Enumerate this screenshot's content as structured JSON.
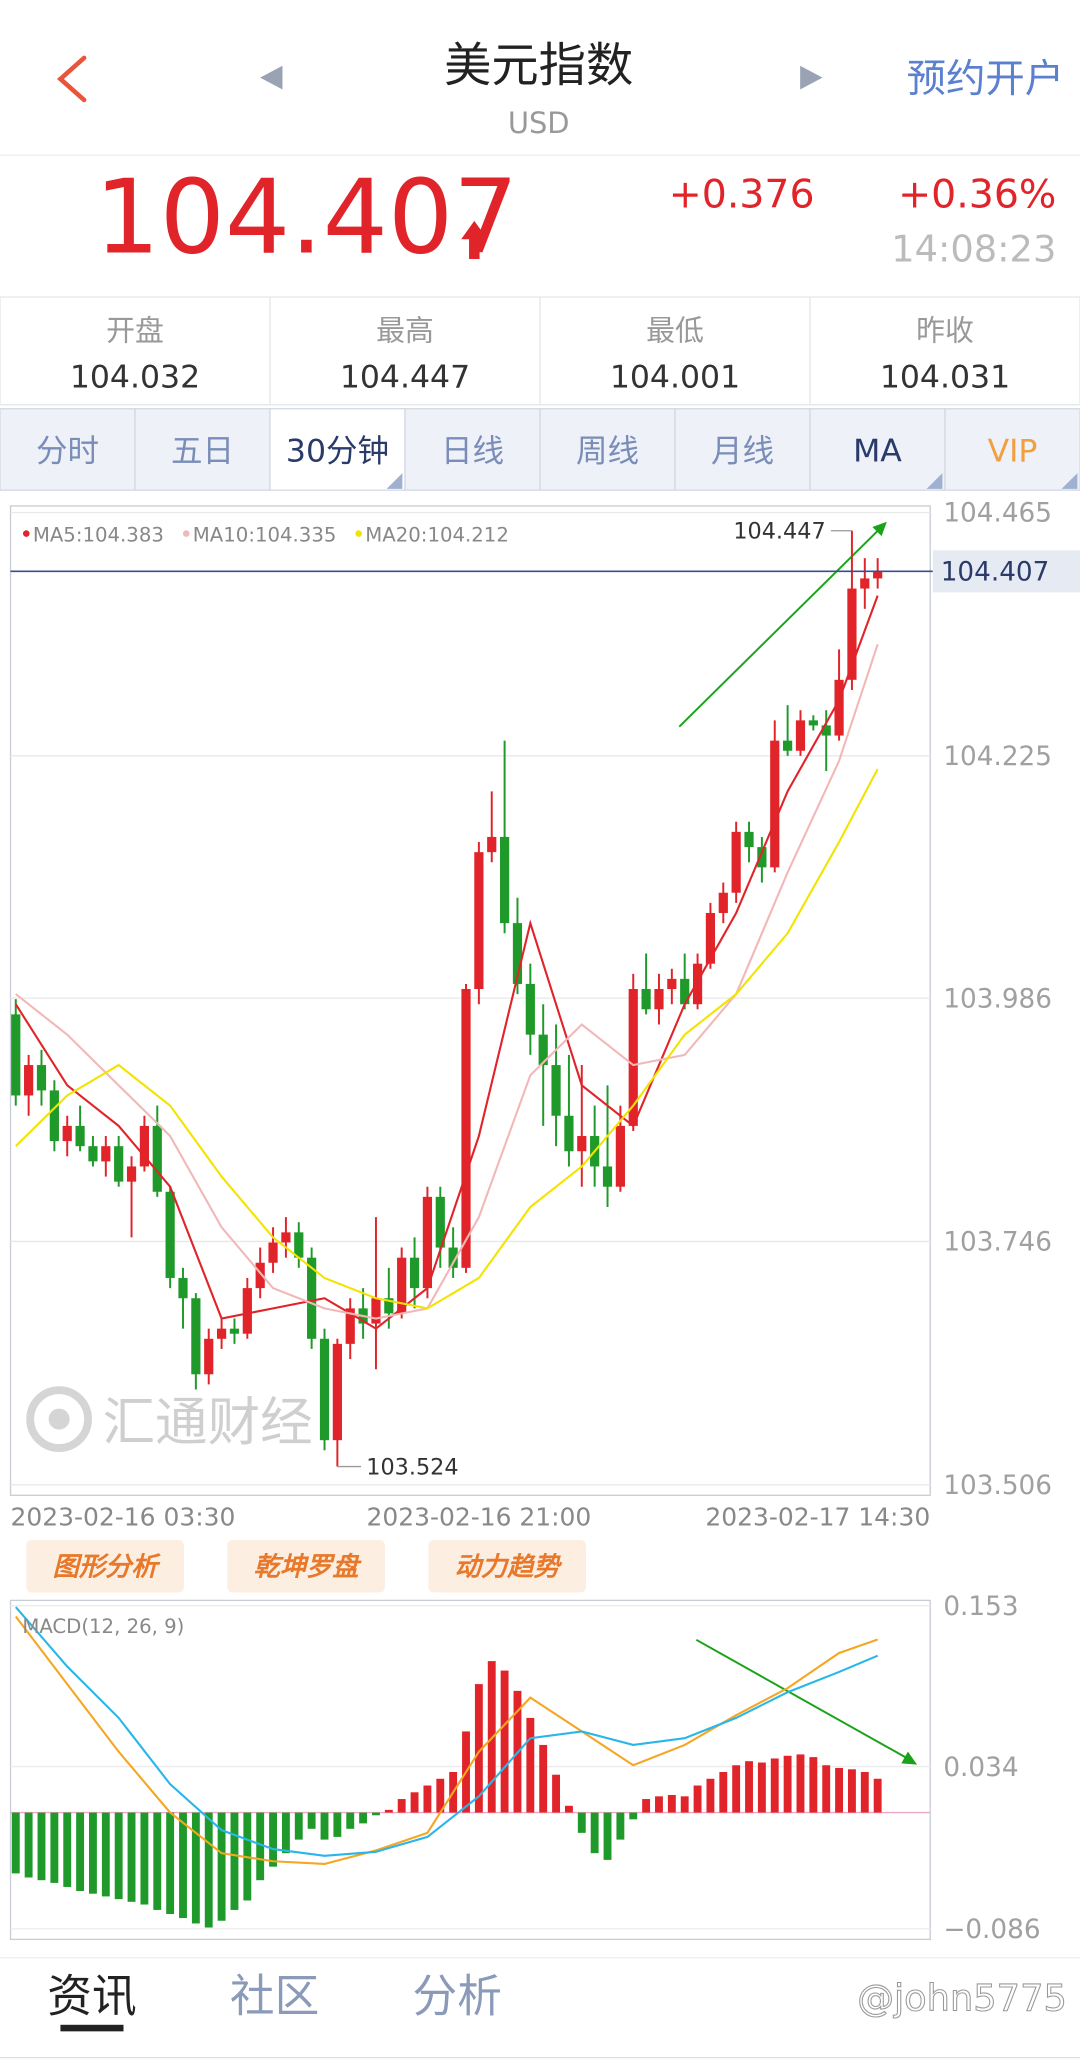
{
  "header": {
    "title": "美元指数",
    "subtitle": "USD",
    "action": "预约开户"
  },
  "quote": {
    "price": 104.407,
    "change": "+0.376",
    "change_pct": "+0.36%",
    "time": "14:08:23"
  },
  "stats": [
    {
      "label": "开盘",
      "value": 104.032
    },
    {
      "label": "最高",
      "value": 104.447
    },
    {
      "label": "最低",
      "value": 104.001
    },
    {
      "label": "昨收",
      "value": 104.031
    }
  ],
  "tabs": {
    "items": [
      "分时",
      "五日",
      "30分钟",
      "日线",
      "周线",
      "月线",
      "MA",
      "VIP"
    ],
    "selected": 2
  },
  "chart_data": [
    {
      "type": "candlestick",
      "up_color": "#e0242a",
      "down_color": "#1f9a2a",
      "ylim": [
        103.506,
        104.465
      ],
      "yticks": [
        104.465,
        104.225,
        103.986,
        103.746,
        103.506
      ],
      "grid": true,
      "categories": [
        "2023-02-16 03:30",
        null,
        null,
        null,
        null,
        null,
        null,
        null,
        null,
        null,
        null,
        null,
        null,
        null,
        null,
        null,
        null,
        null,
        null,
        null,
        null,
        null,
        null,
        null,
        null,
        null,
        null,
        null,
        null,
        null,
        null,
        null,
        null,
        null,
        null,
        null,
        "2023-02-16 21:00",
        null,
        null,
        null,
        null,
        null,
        null,
        null,
        null,
        null,
        null,
        null,
        null,
        null,
        null,
        null,
        null,
        null,
        null,
        null,
        null,
        null,
        null,
        null,
        null,
        null,
        null,
        null,
        null,
        null,
        null,
        "2023-02-17 14:30"
      ],
      "ohlc": [
        [
          103.97,
          103.985,
          103.88,
          103.89
        ],
        [
          103.89,
          103.93,
          103.87,
          103.92
        ],
        [
          103.92,
          103.935,
          103.88,
          103.895
        ],
        [
          103.895,
          103.905,
          103.835,
          103.845
        ],
        [
          103.845,
          103.87,
          103.83,
          103.86
        ],
        [
          103.86,
          103.88,
          103.835,
          103.84
        ],
        [
          103.84,
          103.85,
          103.82,
          103.825
        ],
        [
          103.825,
          103.85,
          103.81,
          103.84
        ],
        [
          103.84,
          103.85,
          103.8,
          103.805
        ],
        [
          103.805,
          103.83,
          103.75,
          103.82
        ],
        [
          103.82,
          103.87,
          103.815,
          103.86
        ],
        [
          103.86,
          103.88,
          103.79,
          103.795
        ],
        [
          103.795,
          103.8,
          103.7,
          103.71
        ],
        [
          103.71,
          103.72,
          103.66,
          103.69
        ],
        [
          103.69,
          103.695,
          103.6,
          103.615
        ],
        [
          103.615,
          103.66,
          103.605,
          103.65
        ],
        [
          103.65,
          103.67,
          103.64,
          103.66
        ],
        [
          103.66,
          103.67,
          103.645,
          103.655
        ],
        [
          103.655,
          103.71,
          103.65,
          103.7
        ],
        [
          103.7,
          103.74,
          103.69,
          103.725
        ],
        [
          103.725,
          103.76,
          103.715,
          103.745
        ],
        [
          103.745,
          103.77,
          103.73,
          103.755
        ],
        [
          103.755,
          103.765,
          103.72,
          103.73
        ],
        [
          103.73,
          103.74,
          103.64,
          103.65
        ],
        [
          103.65,
          103.66,
          103.54,
          103.55
        ],
        [
          103.55,
          103.65,
          103.524,
          103.645
        ],
        [
          103.645,
          103.69,
          103.63,
          103.68
        ],
        [
          103.68,
          103.7,
          103.65,
          103.665
        ],
        [
          103.665,
          103.77,
          103.62,
          103.69
        ],
        [
          103.69,
          103.72,
          103.66,
          103.675
        ],
        [
          103.675,
          103.74,
          103.67,
          103.73
        ],
        [
          103.73,
          103.75,
          103.68,
          103.7
        ],
        [
          103.7,
          103.8,
          103.69,
          103.79
        ],
        [
          103.79,
          103.8,
          103.72,
          103.74
        ],
        [
          103.74,
          103.76,
          103.71,
          103.72
        ],
        [
          103.72,
          104.0,
          103.715,
          103.995
        ],
        [
          103.995,
          104.14,
          103.98,
          104.13
        ],
        [
          104.13,
          104.19,
          104.12,
          104.145
        ],
        [
          104.145,
          104.24,
          104.05,
          104.06
        ],
        [
          104.06,
          104.085,
          103.99,
          104.0
        ],
        [
          104.0,
          104.02,
          103.93,
          103.95
        ],
        [
          103.95,
          103.98,
          103.86,
          103.92
        ],
        [
          103.92,
          103.96,
          103.84,
          103.87
        ],
        [
          103.87,
          103.93,
          103.82,
          103.835
        ],
        [
          103.835,
          103.92,
          103.8,
          103.85
        ],
        [
          103.85,
          103.88,
          103.8,
          103.82
        ],
        [
          103.82,
          103.9,
          103.78,
          103.8
        ],
        [
          103.8,
          103.88,
          103.795,
          103.86
        ],
        [
          103.86,
          104.01,
          103.855,
          103.995
        ],
        [
          103.995,
          104.03,
          103.97,
          103.975
        ],
        [
          103.975,
          104.01,
          103.96,
          103.995
        ],
        [
          103.995,
          104.015,
          103.98,
          104.005
        ],
        [
          104.005,
          104.03,
          103.975,
          103.98
        ],
        [
          103.98,
          104.03,
          103.975,
          104.02
        ],
        [
          104.02,
          104.08,
          104.015,
          104.07
        ],
        [
          104.07,
          104.1,
          104.06,
          104.09
        ],
        [
          104.09,
          104.16,
          104.08,
          104.15
        ],
        [
          104.15,
          104.16,
          104.12,
          104.135
        ],
        [
          104.135,
          104.145,
          104.1,
          104.115
        ],
        [
          104.115,
          104.26,
          104.11,
          104.24
        ],
        [
          104.24,
          104.275,
          104.225,
          104.23
        ],
        [
          104.23,
          104.27,
          104.225,
          104.26
        ],
        [
          104.26,
          104.265,
          104.25,
          104.255
        ],
        [
          104.255,
          104.27,
          104.21,
          104.245
        ],
        [
          104.245,
          104.33,
          104.24,
          104.3
        ],
        [
          104.3,
          104.447,
          104.29,
          104.39
        ],
        [
          104.39,
          104.42,
          104.37,
          104.4
        ],
        [
          104.4,
          104.42,
          104.39,
          104.407
        ]
      ],
      "ma": [
        {
          "name": "MA5",
          "color": "#e0242a",
          "x": [
            0,
            4,
            8,
            12,
            16,
            20,
            24,
            28,
            32,
            36,
            40,
            44,
            48,
            52,
            56,
            60,
            64,
            67
          ],
          "values": [
            103.98,
            103.9,
            103.86,
            103.8,
            103.67,
            103.68,
            103.69,
            103.66,
            103.7,
            103.85,
            104.06,
            103.9,
            103.86,
            103.98,
            104.07,
            104.19,
            104.28,
            104.383
          ]
        },
        {
          "name": "MA10",
          "color": "#f2b8b8",
          "x": [
            0,
            4,
            8,
            12,
            16,
            20,
            24,
            28,
            32,
            36,
            40,
            44,
            48,
            52,
            56,
            60,
            64,
            67
          ],
          "values": [
            103.99,
            103.95,
            103.9,
            103.85,
            103.76,
            103.7,
            103.68,
            103.67,
            103.68,
            103.77,
            103.91,
            103.96,
            103.92,
            103.93,
            103.99,
            104.11,
            104.22,
            104.335
          ]
        },
        {
          "name": "MA20",
          "color": "#f2e400",
          "x": [
            0,
            4,
            8,
            12,
            16,
            20,
            24,
            28,
            32,
            36,
            40,
            44,
            48,
            52,
            56,
            60,
            64,
            67
          ],
          "values": [
            103.84,
            103.89,
            103.92,
            103.88,
            103.81,
            103.75,
            103.71,
            103.69,
            103.68,
            103.71,
            103.78,
            103.82,
            103.88,
            103.95,
            103.99,
            104.05,
            104.14,
            104.212
          ]
        }
      ]
    },
    {
      "type": "macd",
      "title": "MACD(12, 26, 9)",
      "ylim": [
        -0.086,
        0.153
      ],
      "yticks": [
        0.153,
        0.034,
        {
          "value": -0.086,
          "label": "−0.086"
        }
      ],
      "up_color": "#e0242a",
      "down_color": "#1f9a2a",
      "histogram": [
        -0.045,
        -0.048,
        -0.05,
        -0.052,
        -0.055,
        -0.058,
        -0.06,
        -0.062,
        -0.064,
        -0.066,
        -0.068,
        -0.072,
        -0.075,
        -0.078,
        -0.082,
        -0.085,
        -0.08,
        -0.072,
        -0.065,
        -0.05,
        -0.04,
        -0.03,
        -0.02,
        -0.012,
        -0.02,
        -0.018,
        -0.012,
        -0.008,
        -0.002,
        0.002,
        0.01,
        0.015,
        0.02,
        0.025,
        0.03,
        0.06,
        0.095,
        0.112,
        0.105,
        0.09,
        0.07,
        0.05,
        0.028,
        0.005,
        -0.015,
        -0.03,
        -0.035,
        -0.02,
        -0.005,
        0.01,
        0.012,
        0.013,
        0.012,
        0.02,
        0.025,
        0.03,
        0.035,
        0.038,
        0.037,
        0.04,
        0.042,
        0.043,
        0.041,
        0.035,
        0.033,
        0.032,
        0.03,
        0.025
      ],
      "series": [
        {
          "color": "#f5a623",
          "x": [
            0,
            4,
            8,
            12,
            16,
            20,
            24,
            28,
            32,
            36,
            40,
            44,
            48,
            52,
            56,
            60,
            64,
            67
          ],
          "values": [
            0.145,
            0.095,
            0.045,
            0.0,
            -0.03,
            -0.036,
            -0.038,
            -0.028,
            -0.015,
            0.045,
            0.085,
            0.06,
            0.035,
            0.05,
            0.072,
            0.092,
            0.118,
            0.128
          ]
        },
        {
          "color": "#29b6e8",
          "x": [
            0,
            4,
            8,
            12,
            16,
            20,
            24,
            28,
            32,
            36,
            40,
            44,
            48,
            52,
            56,
            60,
            64,
            67
          ],
          "values": [
            0.152,
            0.108,
            0.07,
            0.021,
            -0.013,
            -0.027,
            -0.032,
            -0.029,
            -0.018,
            0.012,
            0.055,
            0.06,
            0.05,
            0.055,
            0.07,
            0.089,
            0.104,
            0.116
          ]
        }
      ]
    }
  ],
  "tools": [
    "图形分析",
    "乾坤罗盘",
    "动力趋势"
  ],
  "watermark": "汇通财经",
  "bottom_tabs": {
    "items": [
      "资讯",
      "社区",
      "分析"
    ],
    "selected": 0
  },
  "user_watermark": "@john5775"
}
